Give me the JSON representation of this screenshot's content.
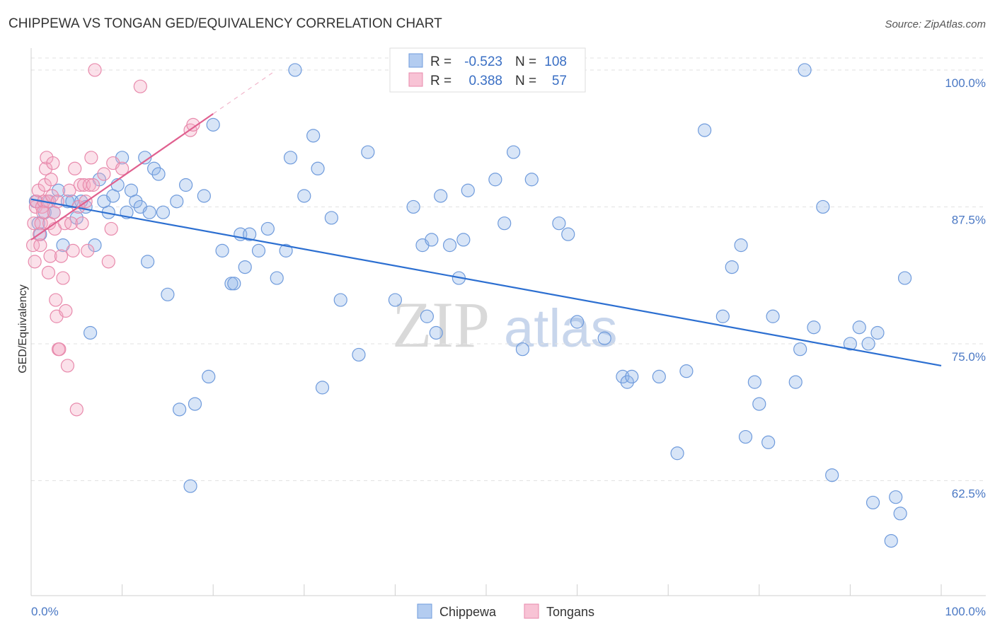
{
  "chart_data": {
    "type": "scatter",
    "title": "CHIPPEWA VS TONGAN GED/EQUIVALENCY CORRELATION CHART",
    "source": "Source: ZipAtlas.com",
    "ylabel": "GED/Equivalency",
    "xlabel": "",
    "xlim": [
      0,
      100
    ],
    "ylim": [
      52,
      102
    ],
    "x_tick_labels": [
      "0.0%",
      "100.0%"
    ],
    "y_ticks": [
      62.5,
      75.0,
      87.5,
      100.0
    ],
    "y_tick_labels": [
      "62.5%",
      "75.0%",
      "87.5%",
      "100.0%"
    ],
    "watermark": {
      "zip": "ZIP",
      "atlas": "atlas"
    },
    "legend": {
      "rows": [
        {
          "r_label": "R =",
          "r_value": "-0.523",
          "n_label": "N =",
          "n_value": "108"
        },
        {
          "r_label": "R =",
          "r_value": "0.388",
          "n_label": "N =",
          "n_value": "57"
        }
      ]
    },
    "series": [
      {
        "name": "Chippewa",
        "color": "#8fb4e8",
        "stroke": "#6f9bdc",
        "line_color": "#2c6fd1",
        "trend": {
          "x": [
            0,
            100
          ],
          "y": [
            88.2,
            73.0
          ]
        },
        "points": [
          [
            0.5,
            88
          ],
          [
            0.8,
            86
          ],
          [
            1,
            85
          ],
          [
            1.5,
            87
          ],
          [
            2,
            88
          ],
          [
            2.5,
            87
          ],
          [
            3,
            89
          ],
          [
            3.5,
            84
          ],
          [
            4,
            88
          ],
          [
            4.5,
            88
          ],
          [
            5,
            86.5
          ],
          [
            5.5,
            88
          ],
          [
            6,
            87.5
          ],
          [
            6.5,
            76
          ],
          [
            7,
            84
          ],
          [
            7.5,
            90
          ],
          [
            8,
            88
          ],
          [
            8.5,
            87
          ],
          [
            9,
            88.5
          ],
          [
            9.5,
            89.5
          ],
          [
            10,
            92
          ],
          [
            10.5,
            87
          ],
          [
            11,
            89
          ],
          [
            11.5,
            88
          ],
          [
            12,
            87.5
          ],
          [
            12.5,
            92
          ],
          [
            12.8,
            82.5
          ],
          [
            13,
            87
          ],
          [
            13.5,
            91
          ],
          [
            14,
            90.5
          ],
          [
            14.5,
            87
          ],
          [
            15,
            79.5
          ],
          [
            16,
            88
          ],
          [
            16.3,
            69
          ],
          [
            17,
            89.5
          ],
          [
            17.5,
            62
          ],
          [
            18,
            69.5
          ],
          [
            19,
            88.5
          ],
          [
            19.5,
            72
          ],
          [
            20,
            95
          ],
          [
            21,
            83.5
          ],
          [
            22,
            80.5
          ],
          [
            22.3,
            80.5
          ],
          [
            23,
            85
          ],
          [
            23.5,
            82
          ],
          [
            24,
            85
          ],
          [
            25,
            83.5
          ],
          [
            26,
            85.5
          ],
          [
            27,
            81
          ],
          [
            28,
            83.5
          ],
          [
            28.5,
            92
          ],
          [
            29,
            100
          ],
          [
            30,
            88.5
          ],
          [
            31,
            94
          ],
          [
            31.5,
            91
          ],
          [
            32,
            71
          ],
          [
            33,
            86.5
          ],
          [
            34,
            79
          ],
          [
            36,
            74
          ],
          [
            37,
            92.5
          ],
          [
            40,
            79
          ],
          [
            42,
            87.5
          ],
          [
            43,
            84
          ],
          [
            43.5,
            77.5
          ],
          [
            44,
            84.5
          ],
          [
            44.5,
            76
          ],
          [
            45,
            88.5
          ],
          [
            46,
            84
          ],
          [
            47,
            81
          ],
          [
            47.5,
            84.5
          ],
          [
            48,
            89
          ],
          [
            51,
            90
          ],
          [
            52,
            86
          ],
          [
            53,
            92.5
          ],
          [
            54,
            74.5
          ],
          [
            55,
            90
          ],
          [
            58,
            86
          ],
          [
            59,
            85
          ],
          [
            60,
            77
          ],
          [
            63,
            75.5
          ],
          [
            65,
            72
          ],
          [
            65.5,
            71.5
          ],
          [
            66,
            72
          ],
          [
            69,
            72
          ],
          [
            71,
            65
          ],
          [
            72,
            72.5
          ],
          [
            74,
            94.5
          ],
          [
            76,
            77.5
          ],
          [
            77,
            82
          ],
          [
            78,
            84
          ],
          [
            78.5,
            66.5
          ],
          [
            79.5,
            71.5
          ],
          [
            80,
            69.5
          ],
          [
            81,
            66
          ],
          [
            81.5,
            77.5
          ],
          [
            84,
            71.5
          ],
          [
            84.5,
            74.5
          ],
          [
            85,
            100
          ],
          [
            86,
            76.5
          ],
          [
            87,
            87.5
          ],
          [
            88,
            63
          ],
          [
            90,
            75
          ],
          [
            91,
            76.5
          ],
          [
            92,
            75
          ],
          [
            93,
            76
          ],
          [
            94.5,
            57
          ],
          [
            95,
            61
          ],
          [
            95.5,
            59.5
          ],
          [
            96,
            81
          ],
          [
            92.5,
            60.5
          ]
        ]
      },
      {
        "name": "Tongans",
        "color": "#f4a9c4",
        "stroke": "#e88aac",
        "line_color": "#e0608f",
        "trend": {
          "x": [
            0,
            20
          ],
          "y": [
            84.5,
            96
          ]
        },
        "points": [
          [
            0.2,
            84
          ],
          [
            0.3,
            86
          ],
          [
            0.5,
            87.5
          ],
          [
            0.6,
            88
          ],
          [
            0.8,
            89
          ],
          [
            1,
            84
          ],
          [
            1.1,
            86
          ],
          [
            1.2,
            87.5
          ],
          [
            1.4,
            88
          ],
          [
            1.5,
            89.5
          ],
          [
            1.6,
            91
          ],
          [
            1.7,
            92
          ],
          [
            1.8,
            88
          ],
          [
            1.9,
            81.5
          ],
          [
            2,
            86
          ],
          [
            2.1,
            83
          ],
          [
            2.2,
            90
          ],
          [
            2.3,
            88.5
          ],
          [
            2.4,
            91.5
          ],
          [
            2.5,
            87
          ],
          [
            2.6,
            85.5
          ],
          [
            2.7,
            79
          ],
          [
            2.8,
            77.5
          ],
          [
            3,
            74.5
          ],
          [
            3.1,
            74.5
          ],
          [
            3.3,
            83
          ],
          [
            3.5,
            81
          ],
          [
            3.7,
            86
          ],
          [
            3.8,
            78
          ],
          [
            4,
            73
          ],
          [
            4.2,
            89
          ],
          [
            4.4,
            86
          ],
          [
            4.6,
            83.5
          ],
          [
            4.8,
            91
          ],
          [
            5,
            69
          ],
          [
            5.2,
            87.5
          ],
          [
            5.4,
            89.5
          ],
          [
            5.6,
            86
          ],
          [
            5.8,
            89.5
          ],
          [
            6,
            88
          ],
          [
            6.2,
            83.5
          ],
          [
            6.4,
            89.5
          ],
          [
            6.6,
            92
          ],
          [
            6.8,
            89.5
          ],
          [
            7,
            100
          ],
          [
            8,
            90.5
          ],
          [
            8.5,
            82.5
          ],
          [
            8.8,
            85.5
          ],
          [
            9,
            91.5
          ],
          [
            10,
            91
          ],
          [
            12,
            98.5
          ],
          [
            17.5,
            94.5
          ],
          [
            17.8,
            95
          ],
          [
            0.4,
            82.5
          ],
          [
            0.9,
            85
          ],
          [
            1.3,
            87
          ],
          [
            2.9,
            88
          ]
        ]
      }
    ]
  }
}
